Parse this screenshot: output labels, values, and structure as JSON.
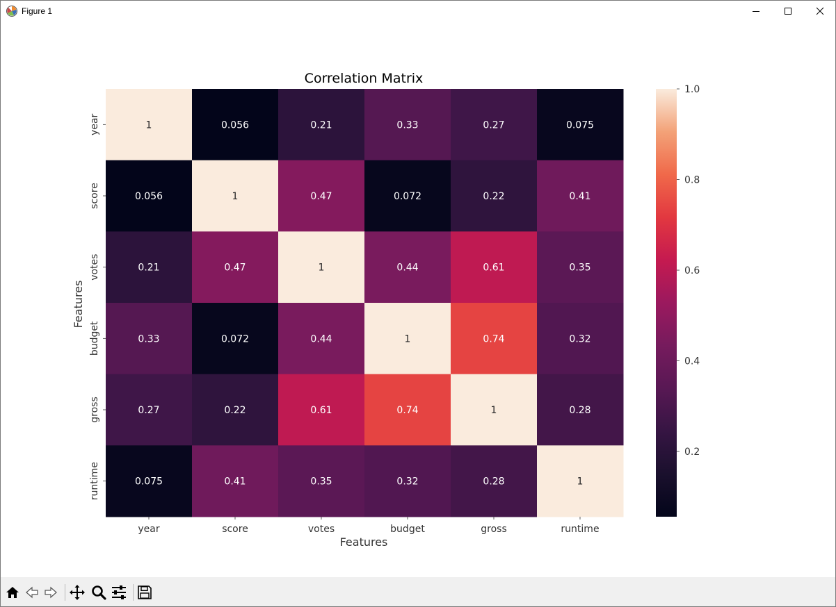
{
  "window": {
    "title": "Figure 1",
    "controls": [
      "minimize-icon",
      "maximize-icon",
      "close-icon"
    ]
  },
  "toolbar": {
    "buttons": [
      {
        "name": "home-icon",
        "tooltip": ""
      },
      {
        "name": "back-arrow-icon",
        "tooltip": ""
      },
      {
        "name": "forward-arrow-icon",
        "tooltip": ""
      },
      {
        "name": "pan-icon",
        "tooltip": ""
      },
      {
        "name": "zoom-icon",
        "tooltip": ""
      },
      {
        "name": "configure-subplots-icon",
        "tooltip": ""
      },
      {
        "name": "save-icon",
        "tooltip": ""
      }
    ]
  },
  "chart_data": {
    "type": "heatmap",
    "title": "Correlation Matrix",
    "xlabel": "Features",
    "ylabel": "Features",
    "x_categories": [
      "year",
      "score",
      "votes",
      "budget",
      "gross",
      "runtime"
    ],
    "y_categories": [
      "year",
      "score",
      "votes",
      "budget",
      "gross",
      "runtime"
    ],
    "values": [
      [
        1,
        0.056,
        0.21,
        0.33,
        0.27,
        0.075
      ],
      [
        0.056,
        1,
        0.47,
        0.072,
        0.22,
        0.41
      ],
      [
        0.21,
        0.47,
        1,
        0.44,
        0.61,
        0.35
      ],
      [
        0.33,
        0.072,
        0.44,
        1,
        0.74,
        0.32
      ],
      [
        0.27,
        0.22,
        0.61,
        0.74,
        1,
        0.28
      ],
      [
        0.075,
        0.41,
        0.35,
        0.32,
        0.28,
        1
      ]
    ],
    "cell_labels": [
      [
        "1",
        "0.056",
        "0.21",
        "0.33",
        "0.27",
        "0.075"
      ],
      [
        "0.056",
        "1",
        "0.47",
        "0.072",
        "0.22",
        "0.41"
      ],
      [
        "0.21",
        "0.47",
        "1",
        "0.44",
        "0.61",
        "0.35"
      ],
      [
        "0.33",
        "0.072",
        "0.44",
        "1",
        "0.74",
        "0.32"
      ],
      [
        "0.27",
        "0.22",
        "0.61",
        "0.74",
        "1",
        "0.28"
      ],
      [
        "0.075",
        "0.41",
        "0.35",
        "0.32",
        "0.28",
        "1"
      ]
    ],
    "colormap": "rocket",
    "colorbar": {
      "range": [
        0.056,
        1.0
      ],
      "ticks": [
        0.2,
        0.4,
        0.6,
        0.8,
        1.0
      ],
      "tick_labels": [
        "0.2",
        "0.4",
        "0.6",
        "0.8",
        "1.0"
      ]
    },
    "grid": false,
    "legend": "colorbar-right"
  }
}
